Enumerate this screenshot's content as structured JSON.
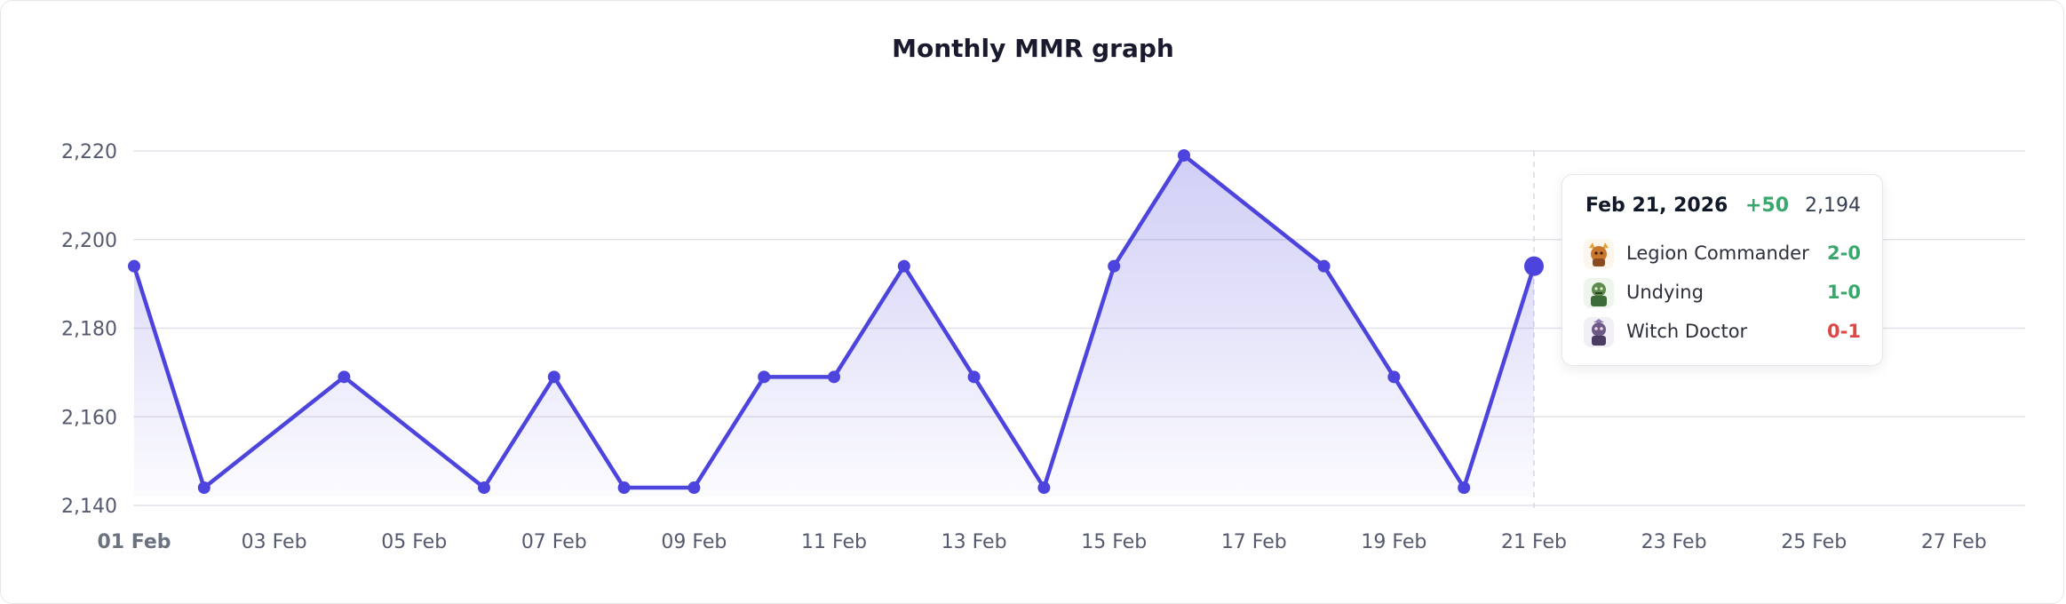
{
  "card": {
    "title": "Monthly MMR graph"
  },
  "chart_data": {
    "type": "area",
    "title": "Monthly MMR graph",
    "xlabel": "",
    "ylabel": "",
    "ylim": [
      2140,
      2220
    ],
    "yticks": [
      2140,
      2160,
      2180,
      2200,
      2220
    ],
    "ytick_labels": [
      "2,140",
      "2,160",
      "2,180",
      "2,200",
      "2,220"
    ],
    "x_tick_days": [
      1,
      3,
      5,
      7,
      9,
      11,
      13,
      15,
      17,
      19,
      21,
      23,
      25,
      27
    ],
    "x_tick_labels": [
      "01 Feb",
      "03 Feb",
      "05 Feb",
      "07 Feb",
      "09 Feb",
      "11 Feb",
      "13 Feb",
      "15 Feb",
      "17 Feb",
      "19 Feb",
      "21 Feb",
      "23 Feb",
      "25 Feb",
      "27 Feb"
    ],
    "highlight_tick_label": "01 Feb",
    "xlim_days": [
      1,
      28
    ],
    "grid": true,
    "series": [
      {
        "days": [
          1,
          2,
          4,
          6,
          7,
          8,
          9,
          10,
          11,
          12,
          13,
          14,
          15,
          16,
          18,
          19,
          20,
          21
        ],
        "values": [
          2194,
          2144,
          2169,
          2144,
          2169,
          2144,
          2144,
          2169,
          2169,
          2194,
          2169,
          2144,
          2194,
          2219,
          2194,
          2169,
          2144,
          2194
        ],
        "color": "#4c44dc"
      }
    ],
    "hover_day": 21
  },
  "tooltip": {
    "date": "Feb 21, 2026",
    "delta": "+50",
    "mmr": "2,194",
    "heroes": [
      {
        "icon": "legion-commander-icon",
        "name": "Legion Commander",
        "score": "2-0",
        "result": "win"
      },
      {
        "icon": "undying-icon",
        "name": "Undying",
        "score": "1-0",
        "result": "win"
      },
      {
        "icon": "witch-doctor-icon",
        "name": "Witch Doctor",
        "score": "0-1",
        "result": "loss"
      }
    ]
  },
  "colors": {
    "line": "#4c44dc",
    "win": "#3aa76d",
    "loss": "#e04848",
    "grid": "#e2e4ea"
  }
}
